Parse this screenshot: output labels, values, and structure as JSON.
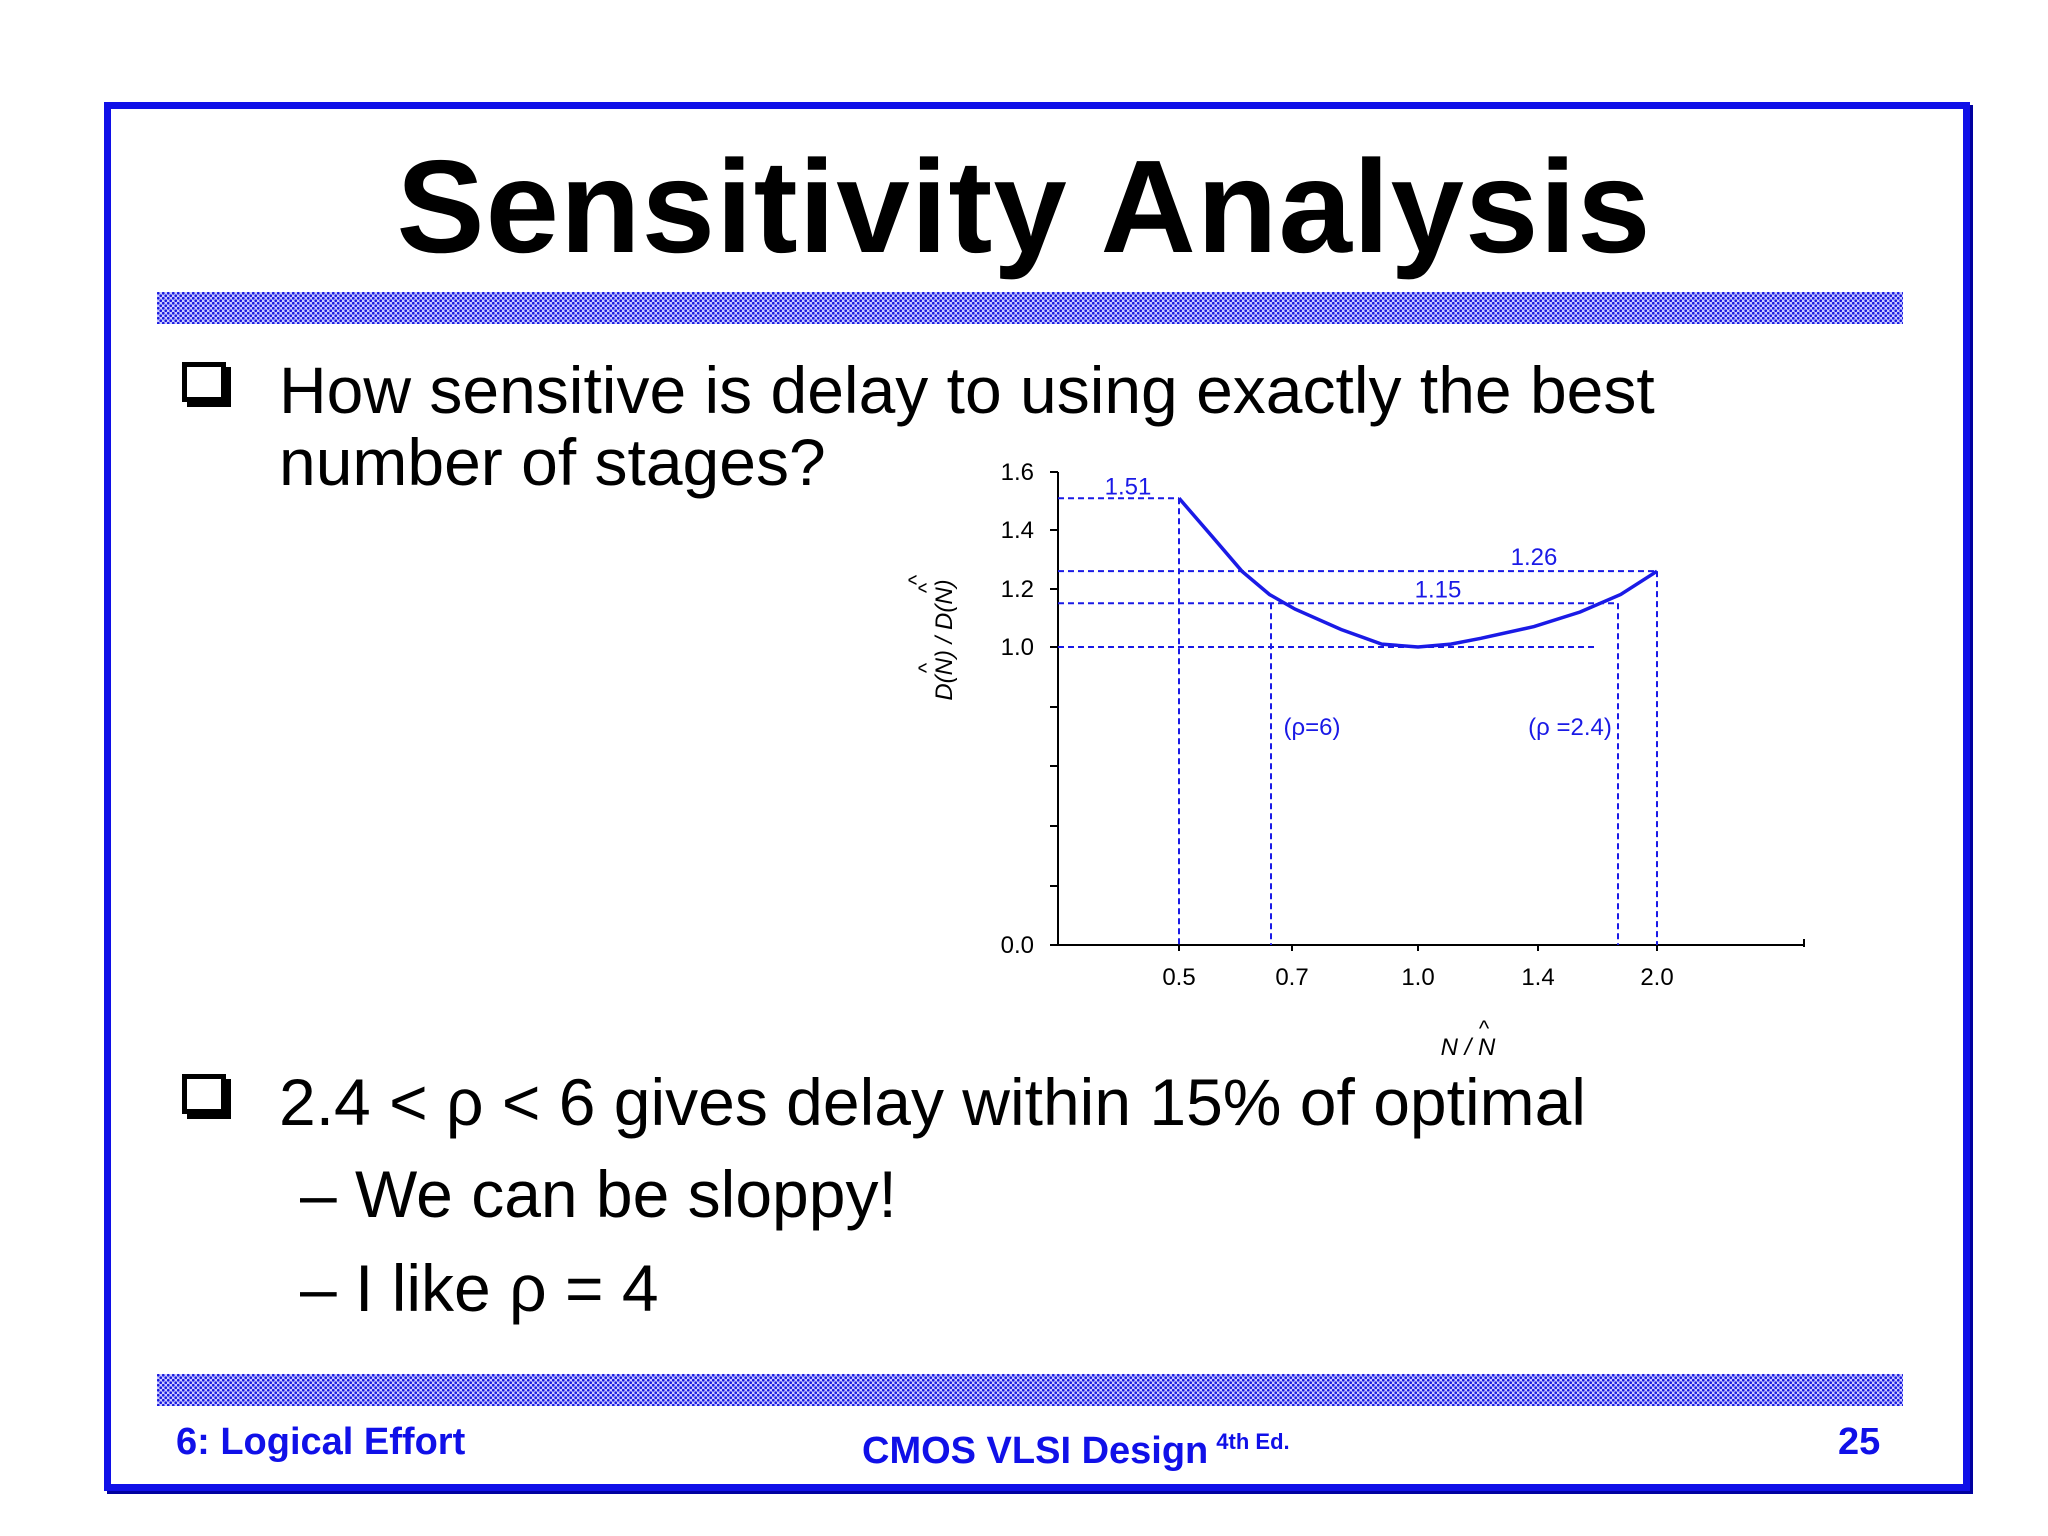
{
  "slide": {
    "title": "Sensitivity Analysis",
    "bullets": [
      {
        "lines": [
          "How sensitive is delay to using exactly the best",
          "number of stages?"
        ]
      },
      {
        "lines": [
          "2.4 < ρ < 6 gives delay within 15% of optimal"
        ],
        "sub": [
          "– We can be sloppy!",
          "– I like ρ = 4"
        ]
      }
    ]
  },
  "footer": {
    "left": "6: Logical Effort",
    "center": "CMOS VLSI Design",
    "center_sup": "4th Ed.",
    "right": "25"
  },
  "colors": {
    "accent": "#1010e8",
    "band": "#c9c9ff",
    "curve": "#1a1ae6"
  },
  "chart_data": {
    "type": "line",
    "ylabel": "D(N) / D(N)",
    "xlabel": "N / N",
    "y_ticks": [
      "0.0",
      "1.0",
      "1.2",
      "1.4",
      "1.6"
    ],
    "x_ticks": [
      "0.5",
      "0.7",
      "1.0",
      "1.4",
      "2.0"
    ],
    "ylim": [
      0,
      1.6
    ],
    "x_scale": "log",
    "x_range": [
      0.5,
      2.0
    ],
    "series": [
      {
        "x": [
          0.5,
          0.55,
          0.6,
          0.65,
          0.7,
          0.8,
          0.9,
          1.0,
          1.1,
          1.2,
          1.4,
          1.6,
          1.8,
          2.0
        ],
        "y": [
          1.51,
          1.38,
          1.26,
          1.18,
          1.13,
          1.06,
          1.01,
          1.0,
          1.01,
          1.03,
          1.07,
          1.12,
          1.18,
          1.26
        ]
      }
    ],
    "annotations": [
      {
        "label": "1.51",
        "y": 1.51,
        "x_end": 0.5
      },
      {
        "label": "1.26",
        "y": 1.26,
        "x_end": 2.0
      },
      {
        "label": "1.15",
        "y": 1.15,
        "x_left": 0.65,
        "x_right": 1.6
      },
      {
        "label": "(ρ=6)",
        "x": 0.65
      },
      {
        "label": "(ρ =2.4)",
        "x": 1.6
      }
    ]
  }
}
